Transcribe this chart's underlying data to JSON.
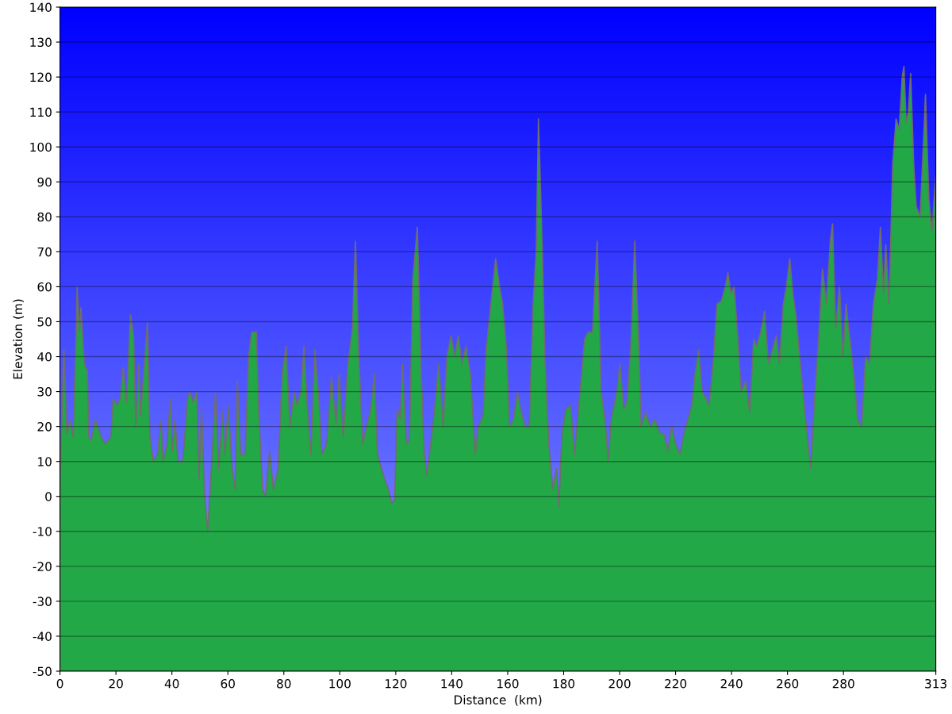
{
  "chart_data": {
    "type": "area",
    "xlabel": "Distance  (km)",
    "ylabel": "Elevation (m)",
    "xlim": [
      0,
      313
    ],
    "ylim": [
      -50,
      140
    ],
    "xticks": [
      0,
      20,
      40,
      60,
      80,
      100,
      120,
      140,
      160,
      180,
      200,
      220,
      240,
      260,
      280,
      313
    ],
    "yticks": [
      -50,
      -40,
      -30,
      -20,
      -10,
      0,
      10,
      20,
      30,
      40,
      50,
      60,
      70,
      80,
      90,
      100,
      110,
      120,
      130,
      140
    ],
    "grid": "y",
    "series": [
      {
        "color": "#22a847",
        "x": [
          0,
          1.4,
          2.5,
          3.6,
          4.7,
          5.9,
          6.1,
          7,
          7.5,
          8.7,
          9.8,
          10.3,
          11.2,
          12.6,
          14.8,
          16.2,
          18.2,
          19,
          20.4,
          21.5,
          22.6,
          23.8,
          25.2,
          26.3,
          27.1,
          28.2,
          28.8,
          31.3,
          32.1,
          33.3,
          34.9,
          36.1,
          36.9,
          38.3,
          39.4,
          40.2,
          41.1,
          42.2,
          43.9,
          45.6,
          46.4,
          47.5,
          48.9,
          49.7,
          50.6,
          51.7,
          52.8,
          53.9,
          55.6,
          56.7,
          58.1,
          59,
          60.1,
          61.5,
          62.6,
          63.4,
          64.6,
          66.2,
          67.4,
          68.5,
          70.2,
          71,
          72.4,
          73.5,
          74.9,
          76.3,
          78,
          79.4,
          80.8,
          82.2,
          83.8,
          84.7,
          86.1,
          87.2,
          88.3,
          89.7,
          91.1,
          92.5,
          93.6,
          95.3,
          97,
          98.7,
          99.8,
          101.2,
          102.9,
          104.5,
          105.6,
          106.8,
          108.2,
          109.6,
          111,
          112.4,
          113.5,
          114.9,
          116,
          117.4,
          118.5,
          119.6,
          120.5,
          121.6,
          122.4,
          123.8,
          124.9,
          126.1,
          127.7,
          129.1,
          130.2,
          131.1,
          132.5,
          133.9,
          135.3,
          136.1,
          136.9,
          138.3,
          139.7,
          141.1,
          142.3,
          143.7,
          145.1,
          146.7,
          148.4,
          149.5,
          151.2,
          152.3,
          154,
          155.7,
          157.1,
          158.2,
          159.6,
          160.7,
          162.1,
          163.5,
          164.6,
          166.3,
          167.7,
          169.1,
          170.2,
          171,
          172.2,
          173.3,
          174.7,
          176.1,
          177.5,
          178.3,
          179.4,
          180.8,
          182.5,
          183.9,
          185.3,
          186.4,
          187.5,
          188.7,
          190.3,
          192,
          193.4,
          194.8,
          195.9,
          197,
          199,
          200.1,
          201.5,
          202.6,
          204,
          205.4,
          206.8,
          207.7,
          209.3,
          211,
          212.7,
          214.4,
          215.8,
          217.2,
          218.6,
          220,
          221.6,
          223,
          224.4,
          225.8,
          226.9,
          228.3,
          229.5,
          230.9,
          232,
          233.6,
          234.8,
          236.4,
          237.8,
          238.7,
          239.8,
          240.9,
          242.3,
          243.4,
          245.1,
          246.5,
          247.9,
          249,
          250.4,
          251.8,
          253.2,
          254.6,
          256,
          257.1,
          258.5,
          259.6,
          260.8,
          261.9,
          263,
          264.1,
          265.5,
          267,
          268.3,
          269.7,
          271.1,
          272.5,
          273.9,
          275.3,
          276.1,
          277.2,
          278.6,
          279.8,
          280.9,
          282.3,
          283.7,
          285.1,
          286.5,
          287.9,
          289.3,
          290.7,
          292.1,
          293.2,
          294.3,
          295.1,
          296.3,
          297.6,
          298.8,
          299.9,
          301,
          301.6,
          302.4,
          303.2,
          304,
          305.1,
          306,
          307.4,
          308.8,
          309.3,
          310.5,
          311.6,
          312.4,
          313
        ],
        "values": [
          5,
          42,
          18,
          22,
          17,
          50,
          60,
          47,
          54,
          38,
          36,
          17,
          16,
          22,
          17,
          15,
          17,
          28,
          26,
          28,
          37,
          27,
          52,
          46,
          20,
          38,
          23,
          50,
          18,
          10,
          12,
          22,
          10,
          15,
          28,
          13,
          22,
          10,
          10,
          28,
          30,
          27,
          30,
          5,
          25,
          0,
          -10,
          5,
          30,
          8,
          24,
          12,
          26,
          8,
          2,
          33,
          12,
          12,
          40,
          47,
          47,
          25,
          2,
          0,
          13,
          2,
          8,
          35,
          43,
          20,
          30,
          26,
          30,
          43,
          27,
          12,
          42,
          28,
          12,
          15,
          34,
          21,
          35,
          17,
          38,
          48,
          73,
          40,
          15,
          20,
          25,
          35,
          12,
          8,
          5,
          2,
          -2,
          -1,
          25,
          22,
          38,
          15,
          16,
          62,
          77,
          35,
          12,
          6,
          15,
          25,
          38,
          30,
          20,
          40,
          46,
          40,
          46,
          38,
          43,
          35,
          12,
          20,
          23,
          42,
          55,
          68,
          60,
          55,
          42,
          20,
          22,
          30,
          25,
          20,
          20,
          55,
          70,
          108,
          75,
          40,
          15,
          2,
          8,
          -3,
          18,
          25,
          26,
          12,
          25,
          35,
          45,
          47,
          47,
          73,
          30,
          22,
          10,
          22,
          30,
          38,
          25,
          27,
          43,
          73,
          45,
          20,
          24,
          20,
          22,
          18,
          18,
          13,
          20,
          15,
          12,
          18,
          22,
          26,
          35,
          42,
          30,
          28,
          26,
          40,
          55,
          56,
          60,
          64,
          58,
          60,
          45,
          30,
          33,
          24,
          45,
          43,
          47,
          53,
          38,
          42,
          46,
          38,
          55,
          60,
          68,
          58,
          52,
          42,
          30,
          18,
          8,
          28,
          45,
          65,
          55,
          73,
          78,
          48,
          60,
          40,
          55,
          45,
          35,
          22,
          20,
          40,
          38,
          55,
          62,
          77,
          58,
          72,
          55,
          95,
          108,
          105,
          120,
          123,
          107,
          110,
          121,
          95,
          83,
          80,
          105,
          115,
          85,
          76,
          85,
          92
        ]
      }
    ]
  }
}
